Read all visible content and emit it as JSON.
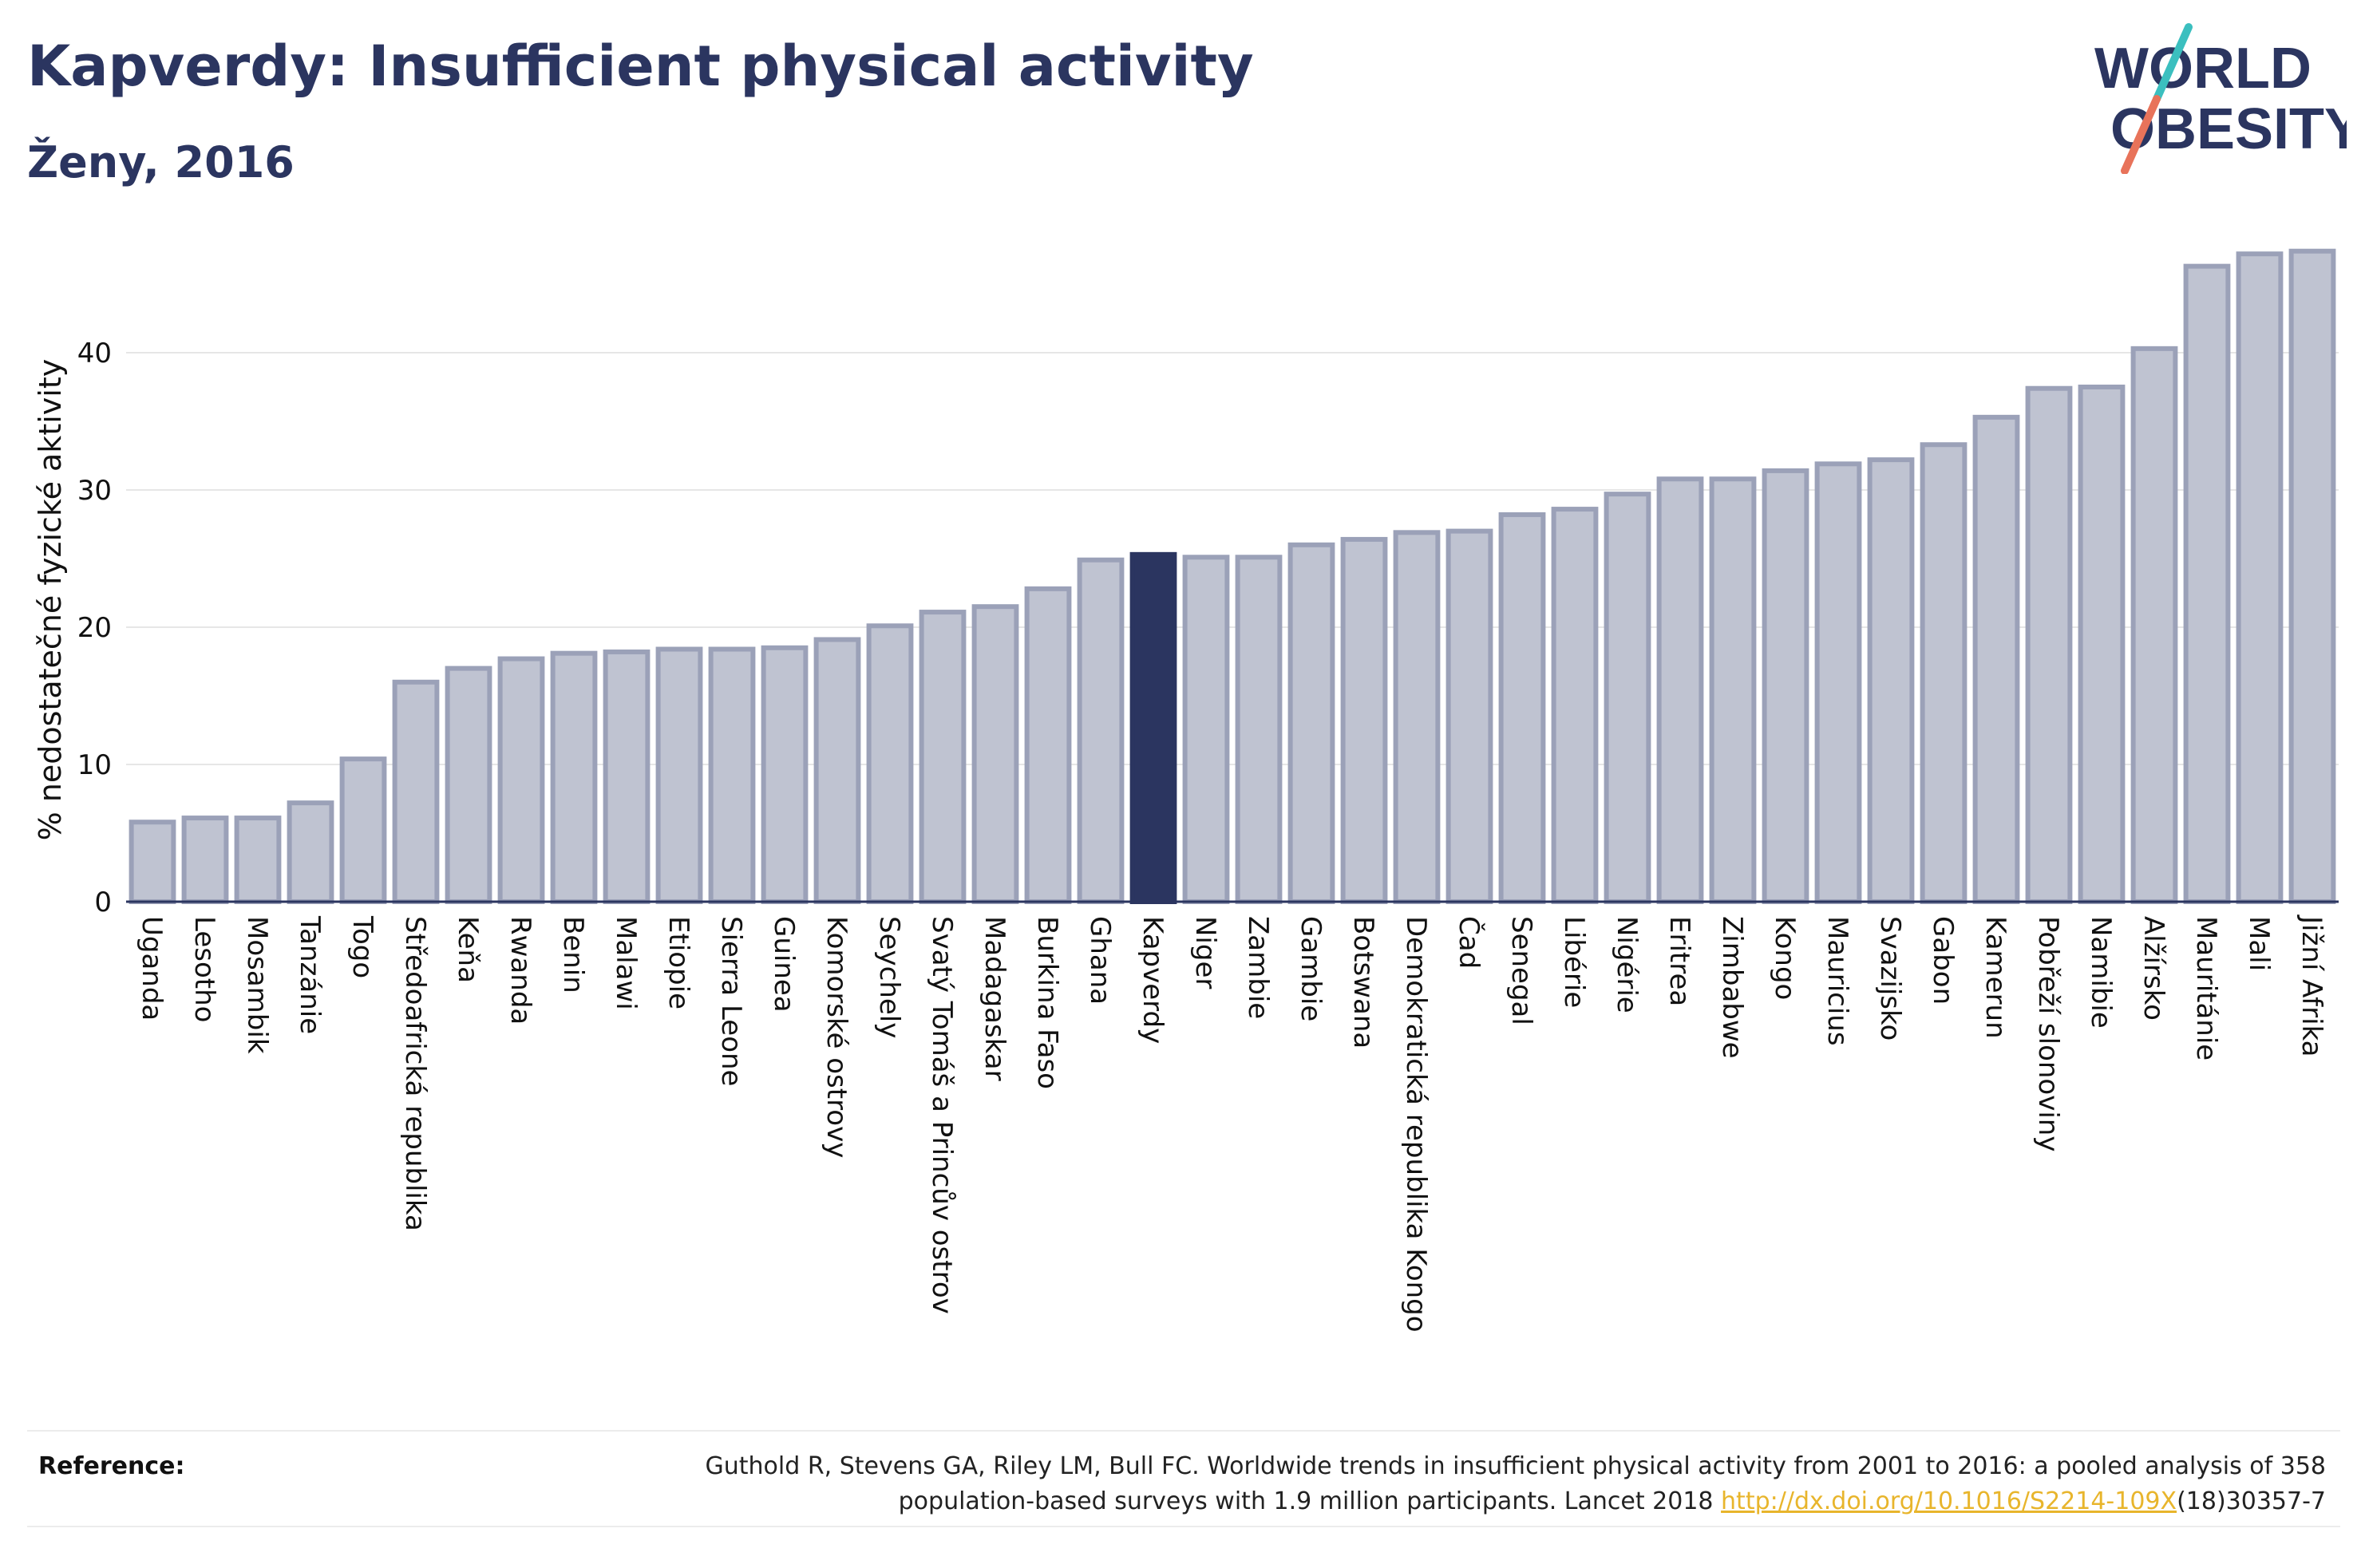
{
  "header": {
    "title": "Kapverdy: Insufficient physical activity",
    "subtitle": "Ženy, 2016"
  },
  "logo": {
    "line1": "WORLD",
    "line2": "OBESITY",
    "colors": {
      "text": "#2b3560",
      "slash_teal": "#3bbfbf",
      "slash_coral": "#e8735a"
    }
  },
  "reference": {
    "label": "Reference:",
    "line1": "Guthold R, Stevens GA, Riley LM, Bull FC. Worldwide trends in insufficient physical activity from 2001 to 2016: a pooled analysis of 358",
    "line2_prefix": "population-based surveys with 1.9 million participants. Lancet 2018 ",
    "link": "http://dx.doi.org/10.1016/S2214-109X",
    "line2_suffix": "(18)30357-7"
  },
  "chart_data": {
    "type": "bar",
    "title": "",
    "xlabel": "",
    "ylabel": "% nedostatečné fyzické aktivity",
    "ylim": [
      0,
      48.5
    ],
    "yticks": [
      0,
      10,
      20,
      30,
      40
    ],
    "grid": true,
    "highlight": "Kapverdy",
    "colors": {
      "bar": "#bfc3d1",
      "bar_edge": "#9ba1b8",
      "highlight": "#2b3560",
      "grid": "#e6e6e6",
      "axis": "#2b3560"
    },
    "categories": [
      "Uganda",
      "Lesotho",
      "Mosambik",
      "Tanzánie",
      "Togo",
      "Středoafrická republika",
      "Keňa",
      "Rwanda",
      "Benin",
      "Malawi",
      "Etiopie",
      "Sierra Leone",
      "Guinea",
      "Komorské ostrovy",
      "Seychely",
      "Svatý Tomáš a Princův ostrov",
      "Madagaskar",
      "Burkina Faso",
      "Ghana",
      "Kapverdy",
      "Niger",
      "Zambie",
      "Gambie",
      "Botswana",
      "Demokratická republika Kongo",
      "Čad",
      "Senegal",
      "Libérie",
      "Nigérie",
      "Eritrea",
      "Zimbabwe",
      "Kongo",
      "Mauricius",
      "Svazijsko",
      "Gabon",
      "Kamerun",
      "Pobřeží slonoviny",
      "Namibie",
      "Alžírsko",
      "Mauritánie",
      "Mali",
      "Jižní Afrika"
    ],
    "values": [
      5.8,
      6.1,
      6.1,
      7.2,
      10.4,
      16.0,
      17.0,
      17.7,
      18.1,
      18.2,
      18.4,
      18.4,
      18.5,
      19.1,
      20.1,
      21.1,
      21.5,
      22.8,
      24.9,
      25.3,
      25.1,
      25.1,
      26.0,
      26.4,
      26.9,
      27.0,
      28.2,
      28.6,
      29.7,
      30.8,
      30.8,
      31.4,
      31.9,
      32.2,
      33.3,
      35.3,
      37.4,
      37.5,
      40.3,
      46.3,
      47.2,
      47.4
    ]
  }
}
